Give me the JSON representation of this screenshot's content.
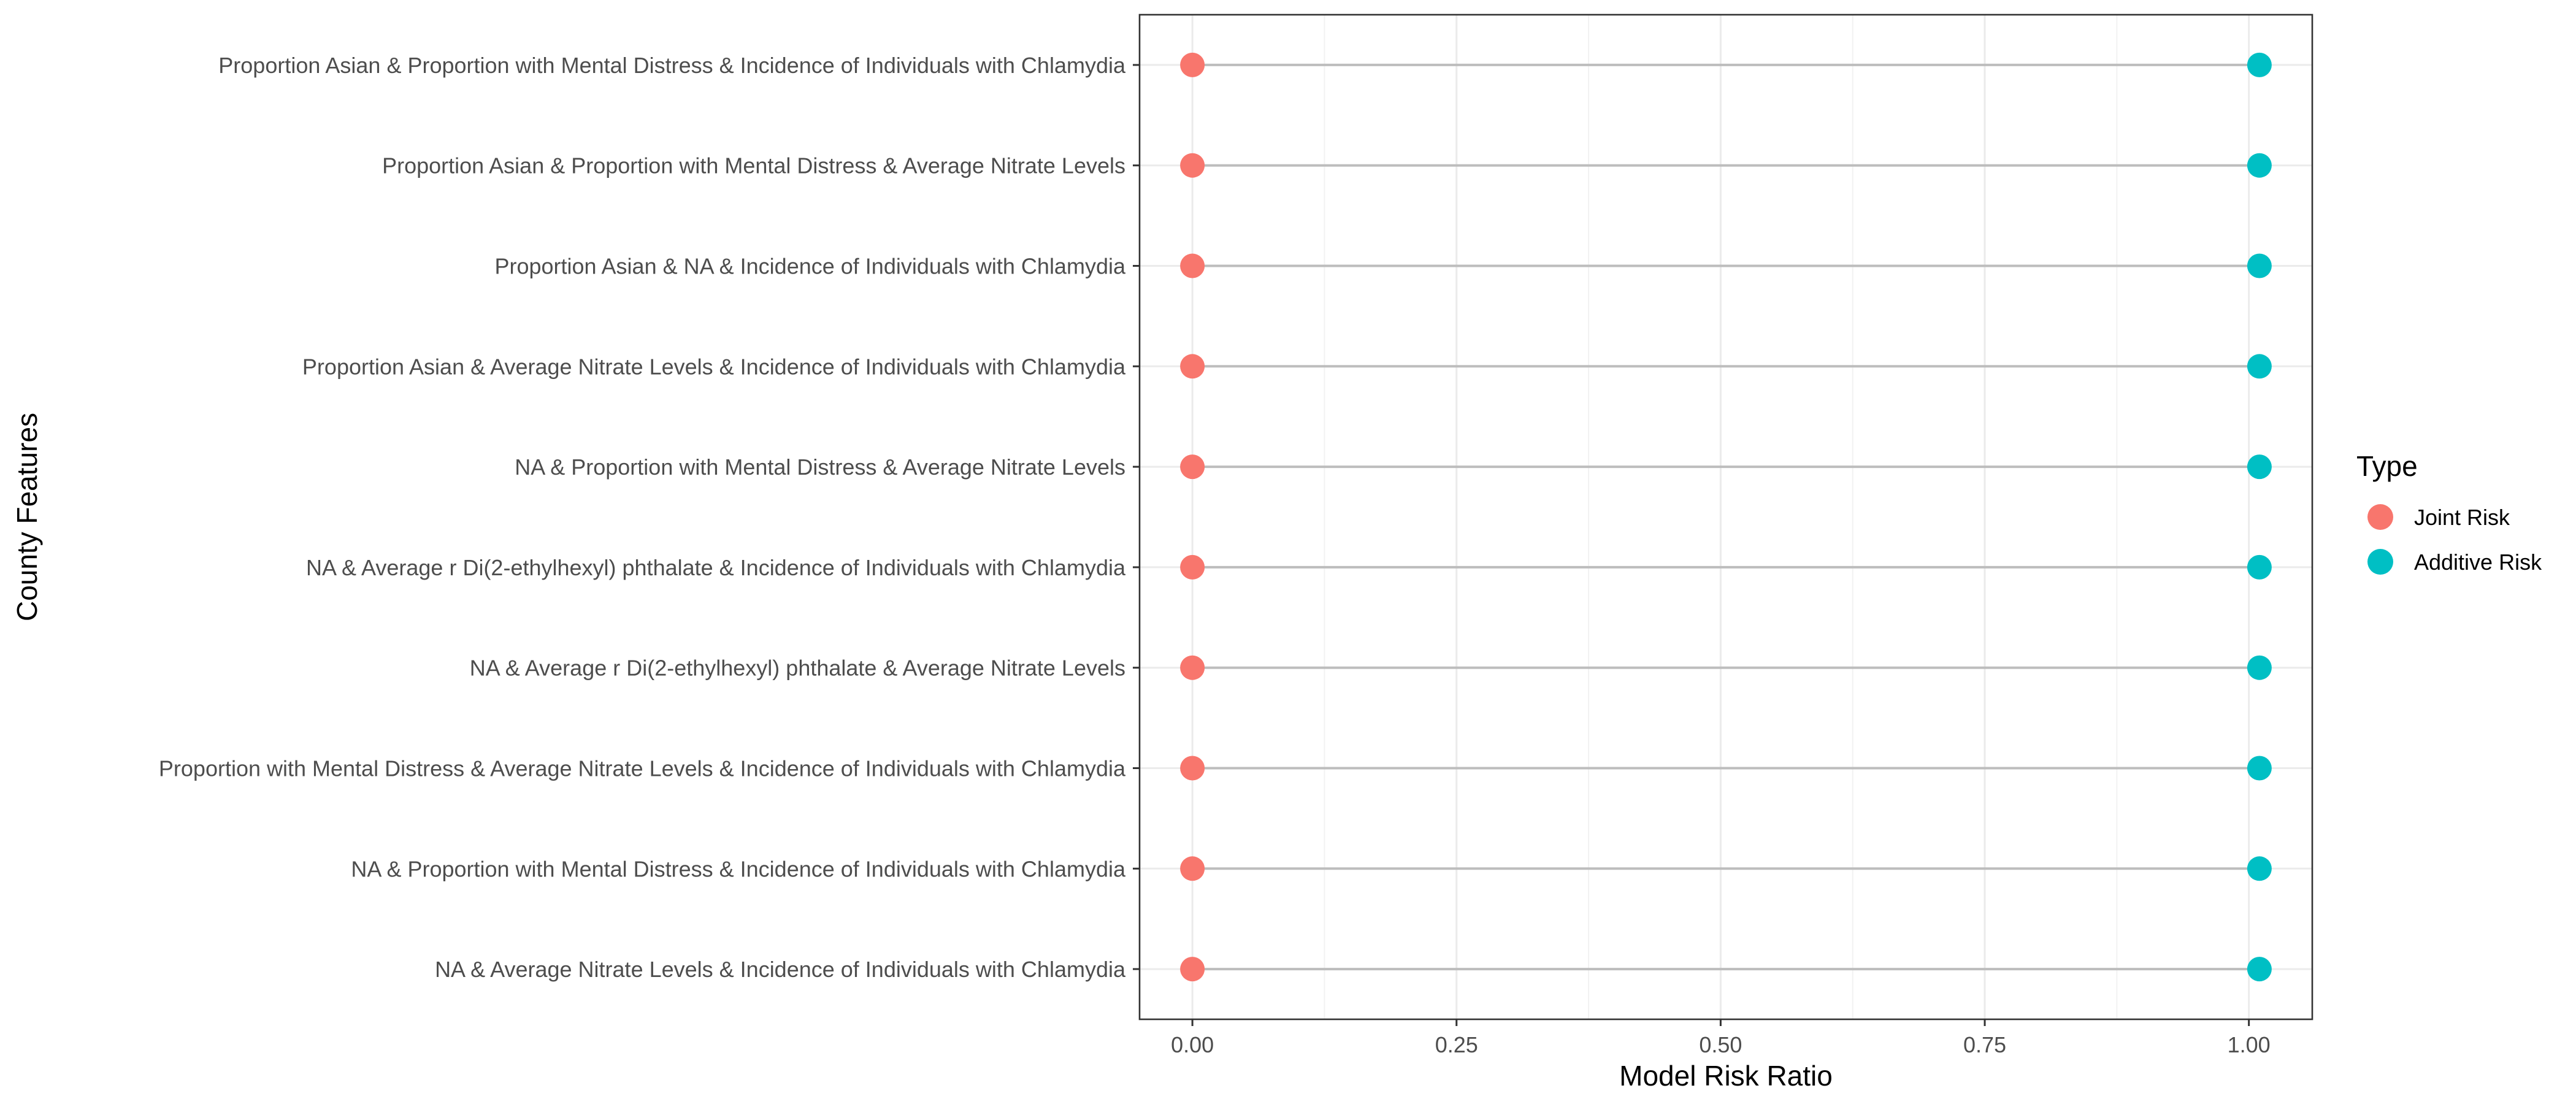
{
  "chart_data": {
    "type": "dot",
    "xlabel": "Model Risk Ratio",
    "ylabel": "County Features",
    "xlim": [
      -0.05,
      1.06
    ],
    "x_ticks": [
      0.0,
      0.25,
      0.5,
      0.75,
      1.0
    ],
    "x_tick_labels": [
      "0.00",
      "0.25",
      "0.50",
      "0.75",
      "1.00"
    ],
    "grid": true,
    "legend": {
      "title": "Type",
      "position": "right",
      "entries": [
        "Joint Risk",
        "Additive Risk"
      ]
    },
    "categories": [
      "Proportion Asian & Proportion with Mental Distress & Incidence of Individuals with Chlamydia",
      "Proportion Asian & Proportion with Mental Distress & Average Nitrate Levels",
      "Proportion Asian & NA & Incidence of Individuals with Chlamydia",
      "Proportion Asian & Average Nitrate Levels & Incidence of Individuals with Chlamydia",
      "NA & Proportion with Mental Distress & Average Nitrate Levels",
      "NA & Average r Di(2-ethylhexyl) phthalate & Incidence of Individuals with Chlamydia",
      "NA & Average r Di(2-ethylhexyl) phthalate & Average Nitrate Levels",
      "Proportion with Mental Distress & Average Nitrate Levels & Incidence of Individuals with Chlamydia",
      "NA & Proportion with Mental Distress & Incidence of Individuals with Chlamydia",
      "NA & Average Nitrate Levels & Incidence of Individuals with Chlamydia"
    ],
    "series": [
      {
        "name": "Joint Risk",
        "color": "#F8766D",
        "values": [
          0.0,
          0.0,
          0.0,
          0.0,
          0.0,
          0.0,
          0.0,
          0.0,
          0.0,
          0.0
        ]
      },
      {
        "name": "Additive Risk",
        "color": "#00BFC4",
        "values": [
          1.01,
          1.01,
          1.01,
          1.01,
          1.01,
          1.01,
          1.01,
          1.01,
          1.01,
          1.01
        ]
      }
    ]
  }
}
